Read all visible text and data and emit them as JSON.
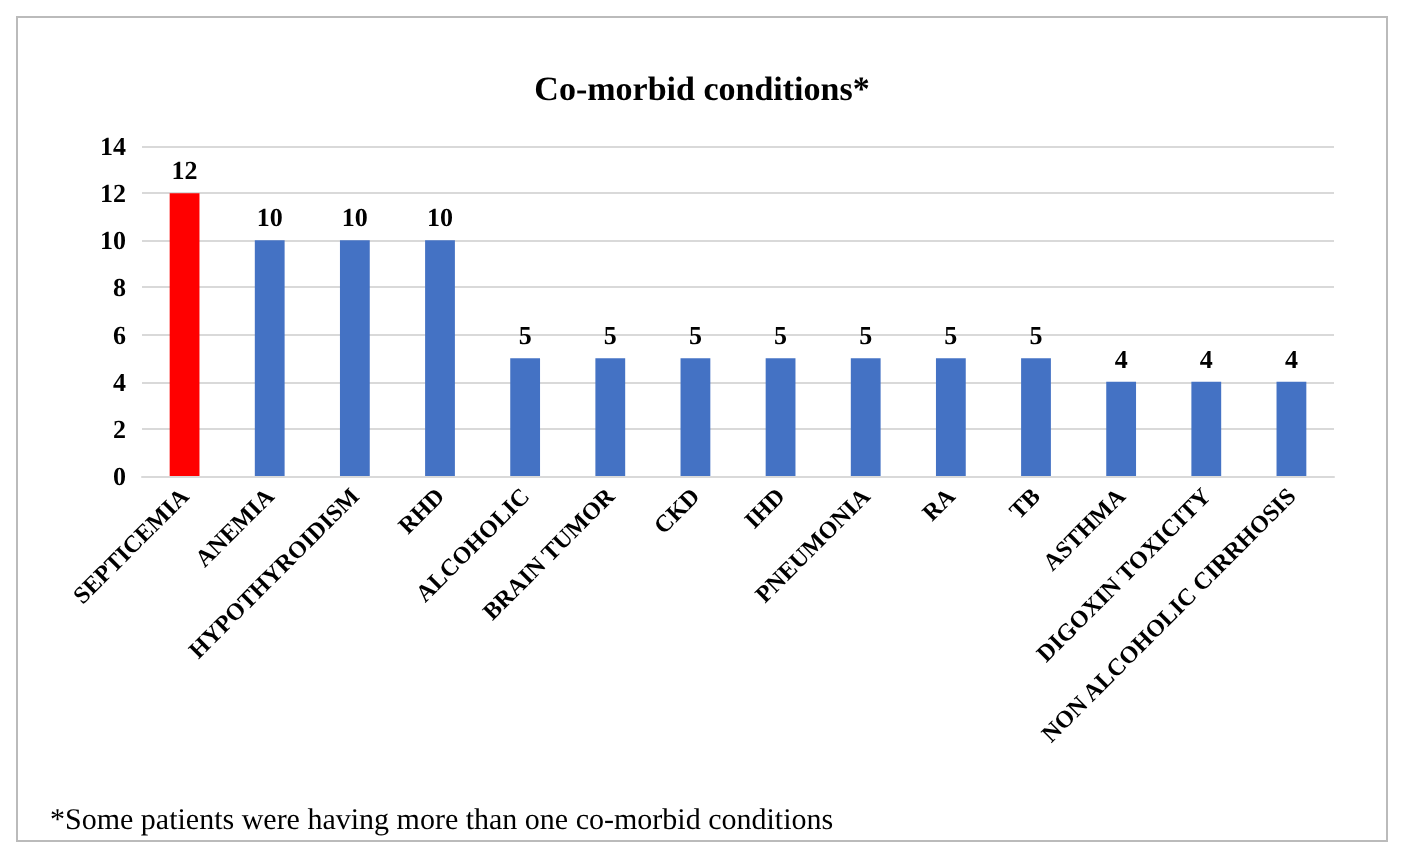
{
  "chart_data": {
    "type": "bar",
    "title": "Co-morbid conditions*",
    "categories": [
      "SEPTICEMIA",
      "ANEMIA",
      "HYPOTHYROIDISM",
      "RHD",
      "ALCOHOLIC",
      "BRAIN TUMOR",
      "CKD",
      "IHD",
      "PNEUMONIA",
      "RA",
      "TB",
      "ASTHMA",
      "DIGOXIN TOXICITY",
      "NON ALCOHOLIC CIRRHOSIS"
    ],
    "values": [
      12,
      10,
      10,
      10,
      5,
      5,
      5,
      5,
      5,
      5,
      5,
      4,
      4,
      4
    ],
    "colors": [
      "#ff0000",
      "#4472c4",
      "#4472c4",
      "#4472c4",
      "#4472c4",
      "#4472c4",
      "#4472c4",
      "#4472c4",
      "#4472c4",
      "#4472c4",
      "#4472c4",
      "#4472c4",
      "#4472c4",
      "#4472c4"
    ],
    "ylim": [
      0,
      14
    ],
    "yticks": [
      0,
      2,
      4,
      6,
      8,
      10,
      12,
      14
    ],
    "grid": "y",
    "data_labels": true,
    "annotations": [
      "*Some patients were having more than one co-morbid conditions"
    ]
  }
}
